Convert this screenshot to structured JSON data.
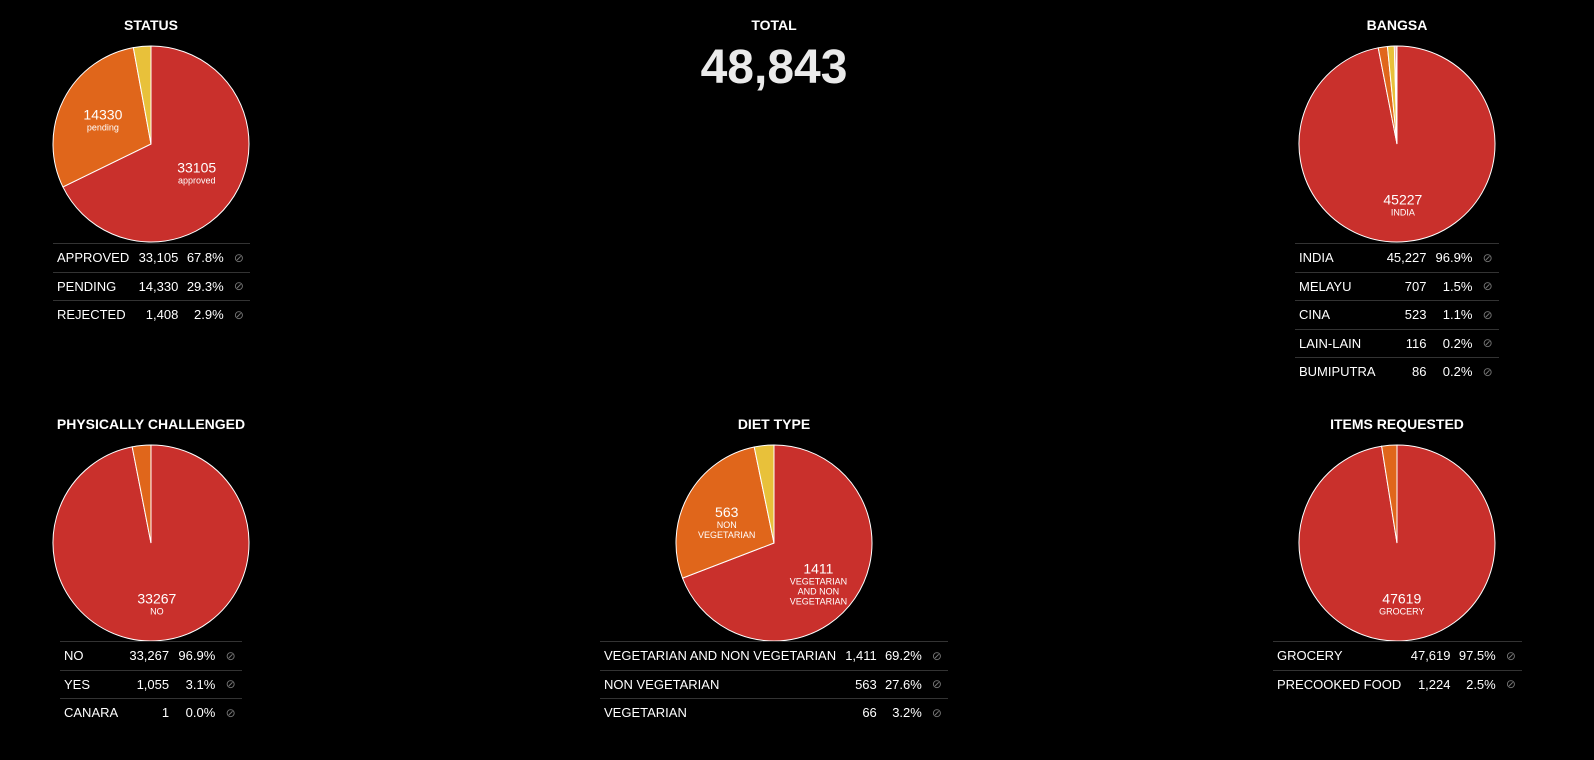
{
  "total": {
    "title": "TOTAL",
    "value": "48,843"
  },
  "colors": [
    "#c9302c",
    "#e0661b",
    "#e8c13a"
  ],
  "chart_data": [
    {
      "id": "status",
      "type": "pie",
      "title": "STATUS",
      "cx": 151,
      "cy": 144,
      "slices": [
        {
          "label": "APPROVED",
          "value": 33105,
          "count": "33,105",
          "pct": "67.8%",
          "pie_value": "33105",
          "pie_label": "approved"
        },
        {
          "label": "PENDING",
          "value": 14330,
          "count": "14,330",
          "pct": "29.3%",
          "pie_value": "14330",
          "pie_label": "pending"
        },
        {
          "label": "REJECTED",
          "value": 1408,
          "count": "1,408",
          "pct": "2.9%"
        }
      ]
    },
    {
      "id": "bangsa",
      "type": "pie",
      "title": "BANGSA",
      "slices": [
        {
          "label": "INDIA",
          "value": 45227,
          "count": "45,227",
          "pct": "96.9%",
          "pie_value": "45227",
          "pie_label": "INDIA"
        },
        {
          "label": "MELAYU",
          "value": 707,
          "count": "707",
          "pct": "1.5%"
        },
        {
          "label": "CINA",
          "value": 523,
          "count": "523",
          "pct": "1.1%"
        },
        {
          "label": "LAIN-LAIN",
          "value": 116,
          "count": "116",
          "pct": "0.2%"
        },
        {
          "label": "BUMIPUTRA",
          "value": 86,
          "count": "86",
          "pct": "0.2%"
        }
      ]
    },
    {
      "id": "physically",
      "type": "pie",
      "title": "PHYSICALLY CHALLENGED",
      "slices": [
        {
          "label": "NO",
          "value": 33267,
          "count": "33,267",
          "pct": "96.9%",
          "pie_value": "33267",
          "pie_label": "NO"
        },
        {
          "label": "YES",
          "value": 1055,
          "count": "1,055",
          "pct": "3.1%"
        },
        {
          "label": "CANARA",
          "value": 1,
          "count": "1",
          "pct": "0.0%"
        }
      ]
    },
    {
      "id": "diet",
      "type": "pie",
      "title": "DIET TYPE",
      "slices": [
        {
          "label": "VEGETARIAN AND NON VEGETARIAN",
          "value": 1411,
          "count": "1,411",
          "pct": "69.2%",
          "pie_value": "1411",
          "pie_label_lines": [
            "VEGETARIAN",
            "AND NON",
            "VEGETARIAN"
          ]
        },
        {
          "label": "NON VEGETARIAN",
          "value": 563,
          "count": "563",
          "pct": "27.6%",
          "pie_value": "563",
          "pie_label_lines": [
            "NON",
            "VEGETARIAN"
          ]
        },
        {
          "label": "VEGETARIAN",
          "value": 66,
          "count": "66",
          "pct": "3.2%"
        }
      ]
    },
    {
      "id": "items",
      "type": "pie",
      "title": "ITEMS REQUESTED",
      "slices": [
        {
          "label": "GROCERY",
          "value": 47619,
          "count": "47,619",
          "pct": "97.5%",
          "pie_value": "47619",
          "pie_label": "GROCERY"
        },
        {
          "label": "PRECOOKED FOOD",
          "value": 1224,
          "count": "1,224",
          "pct": "2.5%"
        }
      ]
    }
  ]
}
